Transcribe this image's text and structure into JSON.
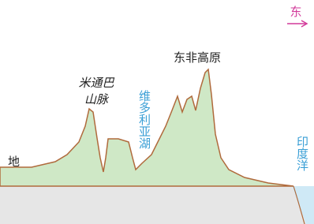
{
  "direction": "东",
  "labels": {
    "plateau": "东非高原",
    "mountain_line1": "米通巴",
    "mountain_line2": "山脉",
    "lake": "维多利亚湖",
    "land": "地",
    "ocean": "印度洋"
  }
}
